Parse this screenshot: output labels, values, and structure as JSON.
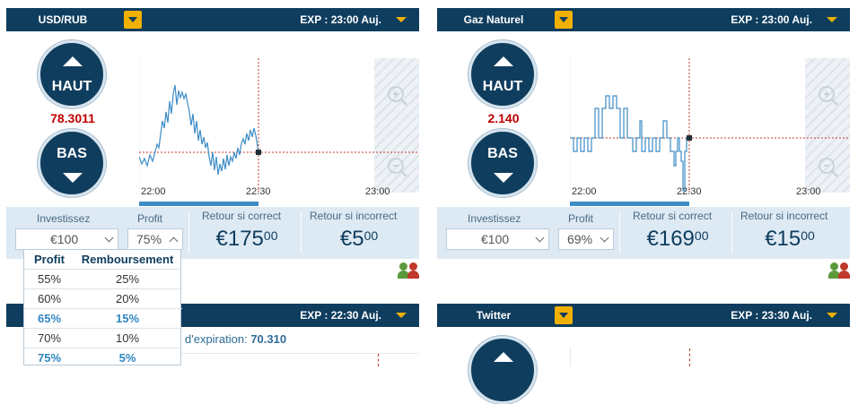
{
  "panels": [
    {
      "asset": "USD/RUB",
      "exp": "EXP : 23:00 Auj.",
      "up": "HAUT",
      "down": "BAS",
      "price": "78.3011",
      "x_ticks": [
        "22:00",
        "22:30",
        "23:00"
      ],
      "invest_label": "Investissez",
      "profit_label": "Profit",
      "invest_value": "€100",
      "profit_value": "75%",
      "return_correct_label": "Retour si correct",
      "return_correct": "€175",
      "return_correct_cents": "00",
      "return_incorrect_label": "Retour si incorrect",
      "return_incorrect": "€5",
      "return_incorrect_cents": "00"
    },
    {
      "asset": "Gaz Naturel",
      "exp": "EXP : 23:00 Auj.",
      "up": "HAUT",
      "down": "BAS",
      "price": "2.140",
      "x_ticks": [
        "22:00",
        "22:30",
        "23:00"
      ],
      "invest_label": "Investissez",
      "profit_label": "Profit",
      "invest_value": "€100",
      "profit_value": "69%",
      "return_correct_label": "Retour si correct",
      "return_correct": "€169",
      "return_correct_cents": "00",
      "return_incorrect_label": "Retour si incorrect",
      "return_incorrect": "€15",
      "return_incorrect_cents": "00"
    },
    {
      "exp": "EXP : 22:30 Auj.",
      "expiry_text": "d'expiration:",
      "expiry_value": "70.310"
    },
    {
      "asset": "Twitter",
      "exp": "EXP : 23:30 Auj."
    }
  ],
  "popup": {
    "header": [
      "Profit",
      "Remboursement"
    ],
    "rows": [
      [
        "55%",
        "25%"
      ],
      [
        "60%",
        "20%"
      ],
      [
        "65%",
        "15%"
      ],
      [
        "70%",
        "10%"
      ],
      [
        "75%",
        "5%"
      ]
    ]
  },
  "colors": {
    "header": "#0f3d5e",
    "accent": "#f0b000",
    "price": "#c00000",
    "line": "#3d8cc6"
  }
}
